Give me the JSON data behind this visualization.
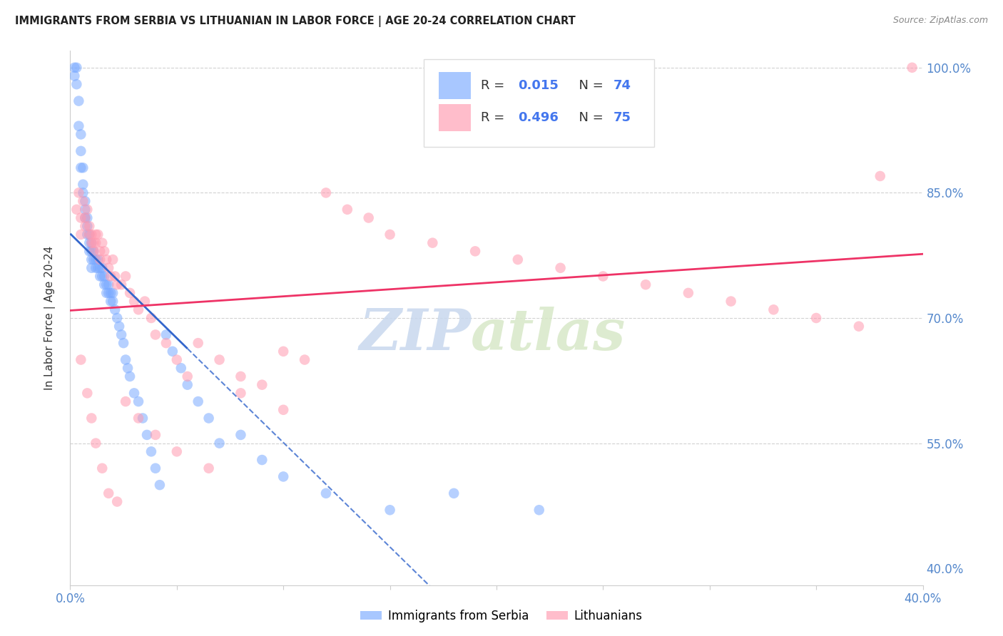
{
  "title": "IMMIGRANTS FROM SERBIA VS LITHUANIAN IN LABOR FORCE | AGE 20-24 CORRELATION CHART",
  "source": "Source: ZipAtlas.com",
  "ylabel": "In Labor Force | Age 20-24",
  "legend_serbia": "Immigrants from Serbia",
  "legend_lithuanian": "Lithuanians",
  "R_serbia": 0.015,
  "N_serbia": 74,
  "R_lithuanian": 0.496,
  "N_lithuanian": 75,
  "color_serbia": "#7aaaff",
  "color_lithuanian": "#ff9ab0",
  "color_serbia_line": "#3366cc",
  "color_lithuanian_line": "#ee3366",
  "xlim": [
    0.0,
    0.4
  ],
  "ylim": [
    0.38,
    1.02
  ],
  "right_yticklabels": [
    "100.0%",
    "85.0%",
    "70.0%",
    "55.0%",
    "40.0%"
  ],
  "right_yticks": [
    1.0,
    0.85,
    0.7,
    0.55,
    0.4
  ],
  "watermark_zip": "ZIP",
  "watermark_atlas": "atlas",
  "serbia_x": [
    0.002,
    0.002,
    0.003,
    0.003,
    0.004,
    0.004,
    0.005,
    0.005,
    0.005,
    0.006,
    0.006,
    0.006,
    0.007,
    0.007,
    0.007,
    0.008,
    0.008,
    0.008,
    0.009,
    0.009,
    0.009,
    0.01,
    0.01,
    0.01,
    0.01,
    0.011,
    0.011,
    0.012,
    0.012,
    0.013,
    0.013,
    0.014,
    0.014,
    0.015,
    0.015,
    0.016,
    0.016,
    0.017,
    0.017,
    0.018,
    0.018,
    0.019,
    0.019,
    0.02,
    0.02,
    0.021,
    0.022,
    0.023,
    0.024,
    0.025,
    0.026,
    0.027,
    0.028,
    0.03,
    0.032,
    0.034,
    0.036,
    0.038,
    0.04,
    0.042,
    0.045,
    0.048,
    0.052,
    0.055,
    0.06,
    0.065,
    0.07,
    0.08,
    0.09,
    0.1,
    0.12,
    0.15,
    0.18,
    0.22
  ],
  "serbia_y": [
    1.0,
    0.99,
    1.0,
    0.98,
    0.96,
    0.93,
    0.92,
    0.9,
    0.88,
    0.88,
    0.86,
    0.85,
    0.84,
    0.83,
    0.82,
    0.82,
    0.81,
    0.8,
    0.8,
    0.79,
    0.78,
    0.79,
    0.78,
    0.77,
    0.76,
    0.78,
    0.77,
    0.77,
    0.76,
    0.77,
    0.76,
    0.76,
    0.75,
    0.76,
    0.75,
    0.75,
    0.74,
    0.74,
    0.73,
    0.74,
    0.73,
    0.73,
    0.72,
    0.73,
    0.72,
    0.71,
    0.7,
    0.69,
    0.68,
    0.67,
    0.65,
    0.64,
    0.63,
    0.61,
    0.6,
    0.58,
    0.56,
    0.54,
    0.52,
    0.5,
    0.68,
    0.66,
    0.64,
    0.62,
    0.6,
    0.58,
    0.55,
    0.56,
    0.53,
    0.51,
    0.49,
    0.47,
    0.49,
    0.47
  ],
  "lithuanian_x": [
    0.003,
    0.004,
    0.005,
    0.005,
    0.006,
    0.007,
    0.007,
    0.008,
    0.009,
    0.009,
    0.01,
    0.01,
    0.011,
    0.011,
    0.012,
    0.012,
    0.013,
    0.014,
    0.014,
    0.015,
    0.016,
    0.017,
    0.018,
    0.019,
    0.02,
    0.021,
    0.022,
    0.024,
    0.026,
    0.028,
    0.03,
    0.032,
    0.035,
    0.038,
    0.04,
    0.045,
    0.05,
    0.055,
    0.06,
    0.07,
    0.08,
    0.09,
    0.1,
    0.11,
    0.12,
    0.13,
    0.14,
    0.15,
    0.17,
    0.19,
    0.21,
    0.23,
    0.25,
    0.27,
    0.29,
    0.31,
    0.33,
    0.35,
    0.37,
    0.38,
    0.005,
    0.008,
    0.01,
    0.012,
    0.015,
    0.018,
    0.022,
    0.026,
    0.032,
    0.04,
    0.05,
    0.065,
    0.08,
    0.1,
    0.395
  ],
  "lithuanian_y": [
    0.83,
    0.85,
    0.82,
    0.8,
    0.84,
    0.82,
    0.81,
    0.83,
    0.81,
    0.8,
    0.8,
    0.79,
    0.79,
    0.78,
    0.8,
    0.79,
    0.8,
    0.78,
    0.77,
    0.79,
    0.78,
    0.77,
    0.76,
    0.75,
    0.77,
    0.75,
    0.74,
    0.74,
    0.75,
    0.73,
    0.72,
    0.71,
    0.72,
    0.7,
    0.68,
    0.67,
    0.65,
    0.63,
    0.67,
    0.65,
    0.63,
    0.62,
    0.66,
    0.65,
    0.85,
    0.83,
    0.82,
    0.8,
    0.79,
    0.78,
    0.77,
    0.76,
    0.75,
    0.74,
    0.73,
    0.72,
    0.71,
    0.7,
    0.69,
    0.87,
    0.65,
    0.61,
    0.58,
    0.55,
    0.52,
    0.49,
    0.48,
    0.6,
    0.58,
    0.56,
    0.54,
    0.52,
    0.61,
    0.59,
    1.0
  ]
}
